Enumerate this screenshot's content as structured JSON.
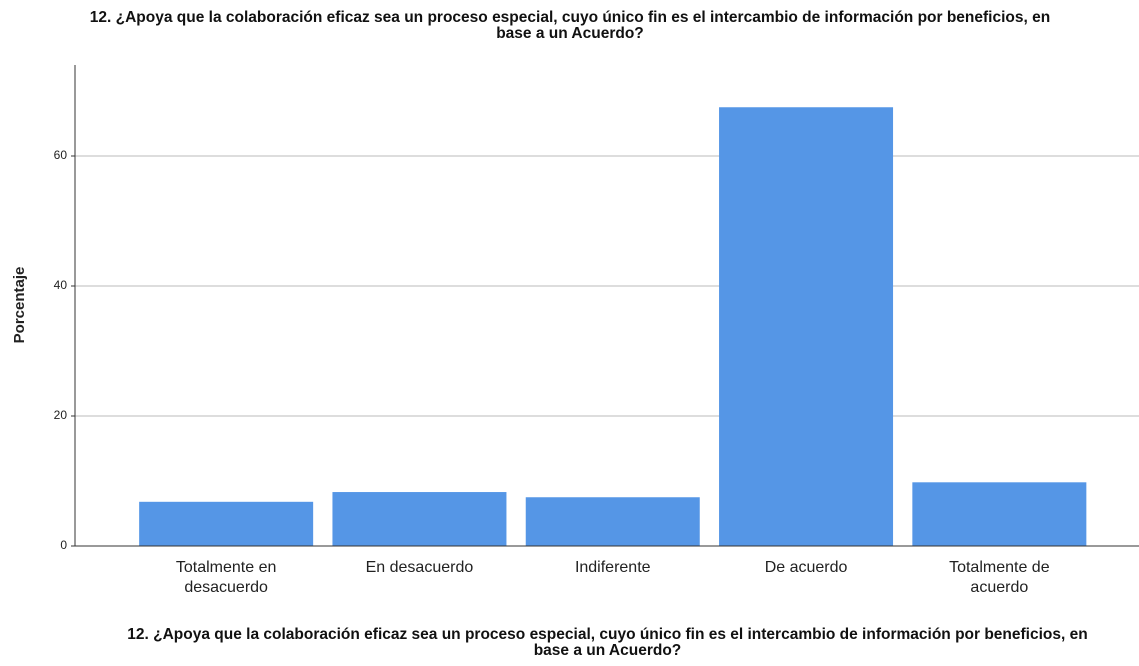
{
  "chart_data": {
    "type": "bar",
    "title": "12. ¿Apoya que la colaboración eficaz sea un proceso especial, cuyo único fin es el intercambio de información por beneficios, en base a un Acuerdo?",
    "x_label": "12. ¿Apoya que la colaboración eficaz sea un proceso especial, cuyo único fin es el intercambio de información por beneficios, en base a un Acuerdo?",
    "y_label": "Porcentaje",
    "categories": [
      "Totalmente en desacuerdo",
      "En desacuerdo",
      "Indiferente",
      "De acuerdo",
      "Totalmente de acuerdo"
    ],
    "values": [
      6.8,
      8.3,
      7.5,
      67.5,
      9.8
    ],
    "color": "#5596e6",
    "ylim": [
      0,
      74
    ],
    "yticks": [
      0,
      20,
      40,
      60
    ],
    "grid": true
  }
}
